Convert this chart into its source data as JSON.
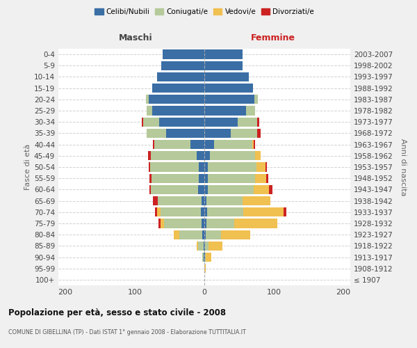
{
  "age_groups": [
    "100+",
    "95-99",
    "90-94",
    "85-89",
    "80-84",
    "75-79",
    "70-74",
    "65-69",
    "60-64",
    "55-59",
    "50-54",
    "45-49",
    "40-44",
    "35-39",
    "30-34",
    "25-29",
    "20-24",
    "15-19",
    "10-14",
    "5-9",
    "0-4"
  ],
  "birth_years": [
    "≤ 1907",
    "1908-1912",
    "1913-1917",
    "1918-1922",
    "1923-1927",
    "1928-1932",
    "1933-1937",
    "1938-1942",
    "1943-1947",
    "1948-1952",
    "1953-1957",
    "1958-1962",
    "1963-1967",
    "1968-1972",
    "1973-1977",
    "1978-1982",
    "1983-1987",
    "1988-1992",
    "1993-1997",
    "1998-2002",
    "2003-2007"
  ],
  "males_celibi": [
    0,
    0,
    1,
    1,
    3,
    4,
    5,
    4,
    9,
    8,
    8,
    11,
    20,
    55,
    65,
    75,
    80,
    75,
    68,
    62,
    60
  ],
  "males_coniugati": [
    0,
    0,
    2,
    8,
    33,
    54,
    58,
    63,
    68,
    68,
    70,
    66,
    52,
    28,
    23,
    8,
    4,
    0,
    0,
    0,
    0
  ],
  "males_vedovi": [
    0,
    0,
    0,
    2,
    8,
    5,
    5,
    0,
    0,
    0,
    0,
    0,
    0,
    0,
    0,
    0,
    0,
    0,
    0,
    0,
    0
  ],
  "males_divorziati": [
    0,
    0,
    0,
    0,
    0,
    3,
    3,
    7,
    2,
    3,
    2,
    4,
    2,
    0,
    2,
    0,
    0,
    0,
    0,
    0,
    0
  ],
  "females_nubili": [
    0,
    0,
    1,
    1,
    2,
    3,
    4,
    3,
    5,
    5,
    5,
    8,
    14,
    38,
    48,
    60,
    72,
    70,
    64,
    55,
    55
  ],
  "females_coniugate": [
    0,
    0,
    1,
    5,
    22,
    40,
    52,
    52,
    66,
    68,
    70,
    65,
    55,
    38,
    28,
    13,
    5,
    0,
    0,
    0,
    0
  ],
  "females_vedove": [
    0,
    2,
    8,
    20,
    42,
    62,
    58,
    40,
    22,
    16,
    13,
    8,
    2,
    0,
    0,
    0,
    0,
    0,
    0,
    0,
    0
  ],
  "females_divorziate": [
    0,
    0,
    0,
    0,
    0,
    0,
    4,
    0,
    5,
    3,
    2,
    0,
    2,
    5,
    3,
    0,
    0,
    0,
    0,
    0,
    0
  ],
  "colors": {
    "celibi_nubili": "#3a6ea5",
    "coniugati": "#b5c99a",
    "vedovi": "#f0c050",
    "divorziati": "#cc2222"
  },
  "xlim": [
    -210,
    210
  ],
  "xticks": [
    -200,
    -100,
    0,
    100,
    200
  ],
  "xticklabels": [
    "200",
    "100",
    "0",
    "100",
    "200"
  ],
  "title": "Popolazione per età, sesso e stato civile - 2008",
  "subtitle": "COMUNE DI GIBELLINA (TP) - Dati ISTAT 1° gennaio 2008 - Elaborazione TUTTITALIA.IT",
  "ylabel_left": "Fasce di età",
  "ylabel_right": "Anni di nascita",
  "label_maschi": "Maschi",
  "label_femmine": "Femmine",
  "legend_labels": [
    "Celibi/Nubili",
    "Coniugati/e",
    "Vedovi/e",
    "Divorziati/e"
  ],
  "bg_color": "#f0f0f0",
  "plot_bg_color": "#ffffff",
  "grid_color": "#cccccc",
  "maschi_color": "#444444",
  "femmine_color": "#cc2222"
}
